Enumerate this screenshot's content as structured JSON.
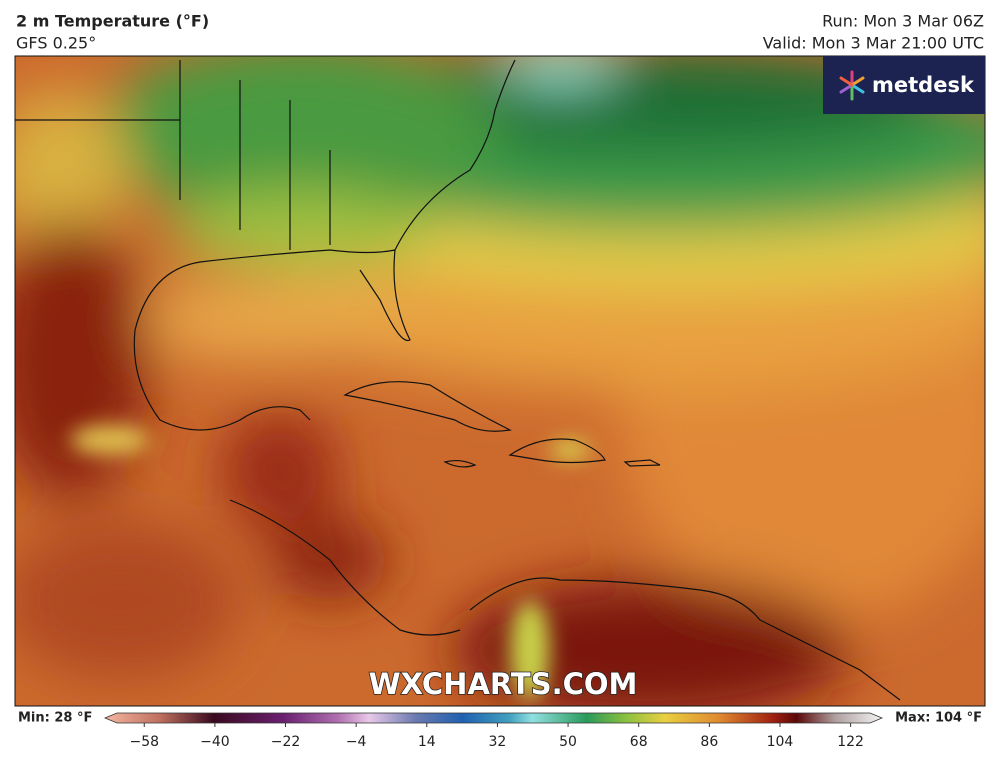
{
  "header": {
    "title": "2 m Temperature (°F)",
    "subtitle": "GFS 0.25°",
    "run": "Run: Mon 3 Mar 06Z",
    "valid": "Valid: Mon 3 Mar 21:00 UTC"
  },
  "logo": "metdesk",
  "watermark": "WXCHARTS.COM",
  "colorbar": {
    "min_label": "Min: 28 °F",
    "max_label": "Max: 104 °F",
    "lim": [
      -68,
      130
    ],
    "ticks": [
      {
        "value": -58,
        "label": "−58"
      },
      {
        "value": -40,
        "label": "−40"
      },
      {
        "value": -22,
        "label": "−22"
      },
      {
        "value": -4,
        "label": "−4"
      },
      14,
      32,
      50,
      68,
      86,
      104,
      122
    ]
  }
}
